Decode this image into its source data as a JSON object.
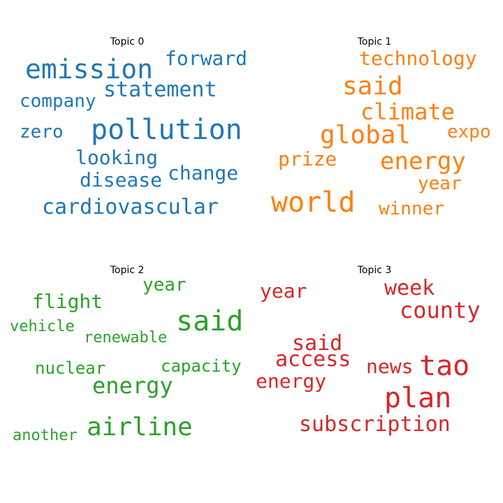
{
  "chart_data": [
    {
      "type": "wordcloud",
      "title": "Topic 0",
      "color": "#1f77b4",
      "words": [
        {
          "text": "pollution",
          "weight": 1.0
        },
        {
          "text": "emission",
          "weight": 0.95
        },
        {
          "text": "statement",
          "weight": 0.72
        },
        {
          "text": "cardiovascular",
          "weight": 0.72
        },
        {
          "text": "forward",
          "weight": 0.68
        },
        {
          "text": "change",
          "weight": 0.65
        },
        {
          "text": "disease",
          "weight": 0.65
        },
        {
          "text": "looking",
          "weight": 0.65
        },
        {
          "text": "company",
          "weight": 0.6
        },
        {
          "text": "zero",
          "weight": 0.6
        }
      ]
    },
    {
      "type": "wordcloud",
      "title": "Topic 1",
      "color": "#ff7f0e",
      "words": [
        {
          "text": "world",
          "weight": 1.0
        },
        {
          "text": "global",
          "weight": 0.88
        },
        {
          "text": "said",
          "weight": 0.88
        },
        {
          "text": "energy",
          "weight": 0.82
        },
        {
          "text": "climate",
          "weight": 0.78
        },
        {
          "text": "technology",
          "weight": 0.7
        },
        {
          "text": "prize",
          "weight": 0.7
        },
        {
          "text": "winner",
          "weight": 0.65
        },
        {
          "text": "year",
          "weight": 0.65
        },
        {
          "text": "expo",
          "weight": 0.63
        }
      ]
    },
    {
      "type": "wordcloud",
      "title": "Topic 2",
      "color": "#2ca02c",
      "words": [
        {
          "text": "said",
          "weight": 1.0
        },
        {
          "text": "airline",
          "weight": 0.9
        },
        {
          "text": "energy",
          "weight": 0.82
        },
        {
          "text": "flight",
          "weight": 0.72
        },
        {
          "text": "year",
          "weight": 0.66
        },
        {
          "text": "capacity",
          "weight": 0.6
        },
        {
          "text": "nuclear",
          "weight": 0.6
        },
        {
          "text": "renewable",
          "weight": 0.56
        },
        {
          "text": "vehicle",
          "weight": 0.56
        },
        {
          "text": "another",
          "weight": 0.56
        }
      ]
    },
    {
      "type": "wordcloud",
      "title": "Topic 3",
      "color": "#d62728",
      "words": [
        {
          "text": "plan",
          "weight": 1.0
        },
        {
          "text": "tao",
          "weight": 1.0
        },
        {
          "text": "subscription",
          "weight": 0.78
        },
        {
          "text": "county",
          "weight": 0.8
        },
        {
          "text": "said",
          "weight": 0.78
        },
        {
          "text": "access",
          "weight": 0.75
        },
        {
          "text": "week",
          "weight": 0.75
        },
        {
          "text": "year",
          "weight": 0.72
        },
        {
          "text": "news",
          "weight": 0.68
        },
        {
          "text": "energy",
          "weight": 0.68
        }
      ]
    }
  ]
}
